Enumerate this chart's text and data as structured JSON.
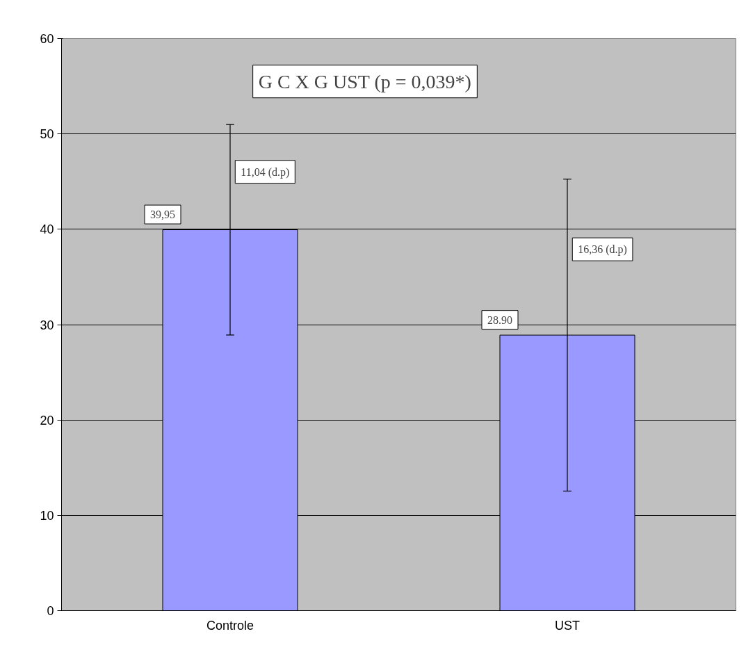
{
  "chart_data": {
    "type": "bar",
    "categories": [
      "Controle",
      "UST"
    ],
    "values": [
      39.95,
      28.9
    ],
    "color": "#9999ff",
    "errors": [
      11.04,
      16.36
    ],
    "value_labels": [
      "39,95",
      "28.90"
    ],
    "ylim": [
      0,
      60
    ],
    "yticks": [
      0,
      10,
      20,
      30,
      40,
      50,
      60
    ],
    "grid": "y",
    "annotations": [
      "G C X G UST (p = 0,039*)",
      "11,04 (d.p)",
      "16,36 (d.p)"
    ]
  }
}
